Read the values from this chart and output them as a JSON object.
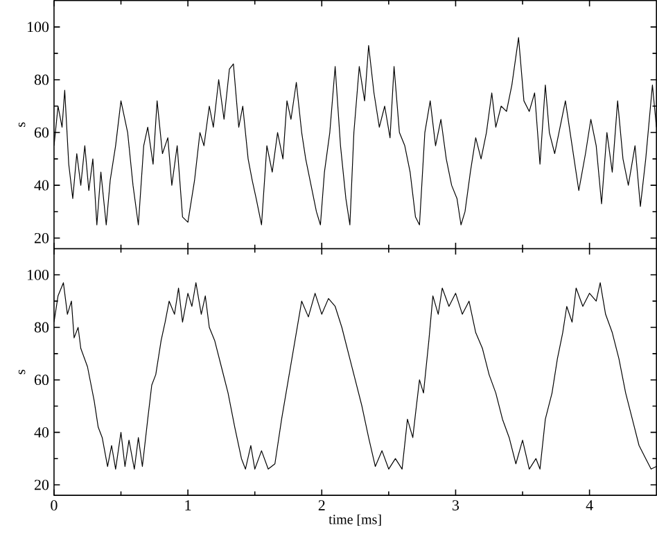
{
  "chart_data": [
    {
      "type": "line",
      "ylabel": "s",
      "xlim": [
        0,
        4.5
      ],
      "ylim": [
        16,
        110
      ],
      "xticks": [
        0,
        1,
        2,
        3,
        4
      ],
      "yticks": [
        20,
        40,
        60,
        80,
        100
      ],
      "tick_labels": "y",
      "grid": false,
      "series": [
        {
          "color": "#000000",
          "line_style": "solid",
          "x": [
            0,
            0.03,
            0.06,
            0.08,
            0.11,
            0.14,
            0.17,
            0.2,
            0.23,
            0.26,
            0.29,
            0.32,
            0.35,
            0.39,
            0.42,
            0.46,
            0.5,
            0.55,
            0.59,
            0.63,
            0.67,
            0.7,
            0.74,
            0.77,
            0.81,
            0.85,
            0.88,
            0.92,
            0.96,
            1.0,
            1.05,
            1.09,
            1.12,
            1.16,
            1.19,
            1.23,
            1.27,
            1.31,
            1.34,
            1.38,
            1.41,
            1.45,
            1.48,
            1.51,
            1.55,
            1.59,
            1.63,
            1.67,
            1.71,
            1.74,
            1.77,
            1.81,
            1.85,
            1.88,
            1.92,
            1.96,
            1.99,
            2.02,
            2.06,
            2.1,
            2.14,
            2.18,
            2.21,
            2.24,
            2.28,
            2.32,
            2.35,
            2.39,
            2.43,
            2.47,
            2.51,
            2.54,
            2.58,
            2.62,
            2.66,
            2.7,
            2.73,
            2.77,
            2.81,
            2.85,
            2.89,
            2.93,
            2.97,
            3.01,
            3.04,
            3.07,
            3.11,
            3.15,
            3.19,
            3.23,
            3.27,
            3.3,
            3.34,
            3.38,
            3.42,
            3.47,
            3.51,
            3.55,
            3.59,
            3.63,
            3.67,
            3.7,
            3.74,
            3.78,
            3.82,
            3.87,
            3.92,
            3.97,
            4.01,
            4.05,
            4.09,
            4.13,
            4.17,
            4.21,
            4.25,
            4.29,
            4.34,
            4.38,
            4.42,
            4.47,
            4.5
          ],
          "values": [
            55,
            70,
            62,
            76,
            48,
            35,
            52,
            40,
            55,
            38,
            50,
            25,
            45,
            25,
            42,
            55,
            72,
            60,
            40,
            25,
            55,
            62,
            48,
            72,
            52,
            58,
            40,
            55,
            28,
            26,
            42,
            60,
            55,
            70,
            62,
            80,
            65,
            84,
            86,
            62,
            70,
            50,
            42,
            35,
            25,
            55,
            45,
            60,
            50,
            72,
            65,
            79,
            60,
            50,
            40,
            30,
            25,
            45,
            60,
            85,
            55,
            35,
            25,
            60,
            85,
            72,
            93,
            75,
            62,
            70,
            58,
            85,
            60,
            55,
            45,
            28,
            25,
            60,
            72,
            55,
            65,
            50,
            40,
            35,
            25,
            30,
            45,
            58,
            50,
            60,
            75,
            62,
            70,
            68,
            78,
            96,
            72,
            68,
            75,
            48,
            78,
            60,
            52,
            62,
            72,
            55,
            38,
            52,
            65,
            55,
            33,
            60,
            45,
            72,
            50,
            40,
            55,
            32,
            50,
            78,
            62
          ]
        }
      ]
    },
    {
      "type": "line",
      "xlabel": "time [ms]",
      "ylabel": "s",
      "xlim": [
        0,
        4.5
      ],
      "ylim": [
        16,
        110
      ],
      "xticks": [
        0,
        1,
        2,
        3,
        4
      ],
      "yticks": [
        20,
        40,
        60,
        80,
        100
      ],
      "grid": false,
      "series": [
        {
          "color": "#000000",
          "line_style": "solid",
          "x": [
            0,
            0.03,
            0.07,
            0.1,
            0.13,
            0.15,
            0.18,
            0.2,
            0.25,
            0.3,
            0.33,
            0.36,
            0.4,
            0.43,
            0.46,
            0.5,
            0.53,
            0.56,
            0.6,
            0.63,
            0.66,
            0.7,
            0.73,
            0.76,
            0.8,
            0.83,
            0.86,
            0.9,
            0.93,
            0.96,
            1.0,
            1.03,
            1.06,
            1.1,
            1.13,
            1.16,
            1.2,
            1.25,
            1.3,
            1.35,
            1.4,
            1.43,
            1.47,
            1.5,
            1.55,
            1.6,
            1.65,
            1.7,
            1.75,
            1.8,
            1.85,
            1.9,
            1.95,
            2.0,
            2.05,
            2.1,
            2.15,
            2.2,
            2.25,
            2.3,
            2.35,
            2.4,
            2.45,
            2.5,
            2.55,
            2.6,
            2.64,
            2.68,
            2.7,
            2.73,
            2.76,
            2.8,
            2.83,
            2.87,
            2.9,
            2.95,
            3.0,
            3.05,
            3.1,
            3.15,
            3.2,
            3.25,
            3.3,
            3.35,
            3.4,
            3.45,
            3.5,
            3.55,
            3.6,
            3.63,
            3.67,
            3.72,
            3.76,
            3.8,
            3.83,
            3.87,
            3.9,
            3.95,
            4.0,
            4.05,
            4.08,
            4.12,
            4.17,
            4.22,
            4.27,
            4.32,
            4.37,
            4.42,
            4.46,
            4.5
          ],
          "values": [
            82,
            92,
            97,
            85,
            90,
            76,
            80,
            72,
            65,
            52,
            42,
            38,
            27,
            35,
            26,
            40,
            27,
            37,
            26,
            38,
            27,
            45,
            58,
            62,
            75,
            82,
            90,
            85,
            95,
            82,
            93,
            88,
            97,
            85,
            92,
            80,
            75,
            65,
            55,
            42,
            30,
            26,
            35,
            26,
            33,
            26,
            28,
            45,
            60,
            75,
            90,
            84,
            93,
            85,
            91,
            88,
            80,
            70,
            60,
            50,
            38,
            27,
            33,
            26,
            30,
            26,
            45,
            38,
            47,
            60,
            55,
            75,
            92,
            85,
            95,
            88,
            93,
            85,
            90,
            78,
            72,
            62,
            55,
            45,
            38,
            28,
            37,
            26,
            30,
            26,
            45,
            55,
            68,
            78,
            88,
            82,
            95,
            88,
            93,
            90,
            97,
            85,
            78,
            68,
            55,
            45,
            35,
            30,
            26,
            27
          ]
        }
      ]
    }
  ]
}
